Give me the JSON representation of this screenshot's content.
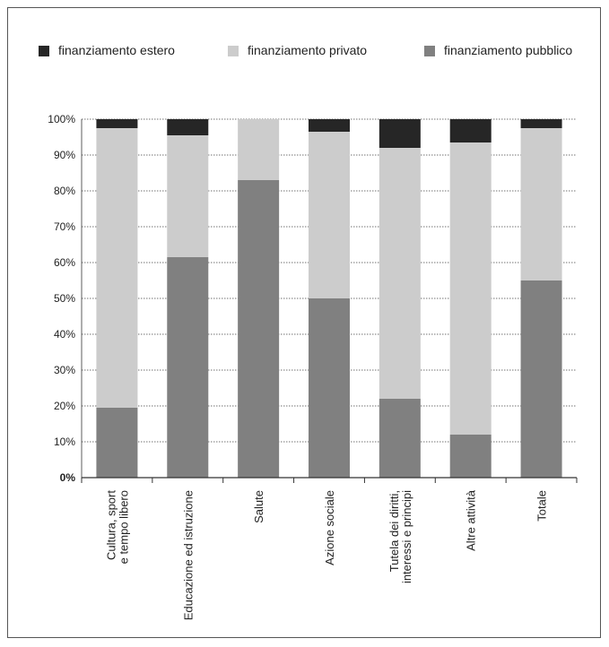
{
  "chart_data": {
    "type": "bar",
    "stacked": true,
    "percent": true,
    "categories": [
      [
        "Cultura, sport",
        "e tempo libero"
      ],
      [
        "Educazione ed istruzione"
      ],
      [
        "Salute"
      ],
      [
        "Azione sociale"
      ],
      [
        "Tutela dei diritti,",
        "interessi e principi"
      ],
      [
        "Altre attività"
      ],
      [
        "Totale"
      ]
    ],
    "series": [
      {
        "name": "finanziamento pubblico",
        "color": "#808080",
        "values": [
          19.5,
          61.5,
          83,
          50,
          22,
          12,
          55
        ]
      },
      {
        "name": "finanziamento privato",
        "color": "#cccccc",
        "values": [
          78,
          34,
          17,
          46.5,
          70,
          81.5,
          42.5
        ]
      },
      {
        "name": "finanziamento estero",
        "color": "#262626",
        "values": [
          2.5,
          4.5,
          0,
          3.5,
          8,
          6.5,
          2.5
        ]
      }
    ],
    "legend": {
      "placement": "top",
      "order": [
        "finanziamento estero",
        "finanziamento privato",
        "finanziamento pubblico"
      ]
    },
    "yticks": [
      "0%",
      "10%",
      "20%",
      "30%",
      "40%",
      "50%",
      "60%",
      "70%",
      "80%",
      "90%",
      "100%"
    ],
    "ylim": [
      0,
      100
    ],
    "grid": true,
    "title": "",
    "xlabel": "",
    "ylabel": ""
  }
}
